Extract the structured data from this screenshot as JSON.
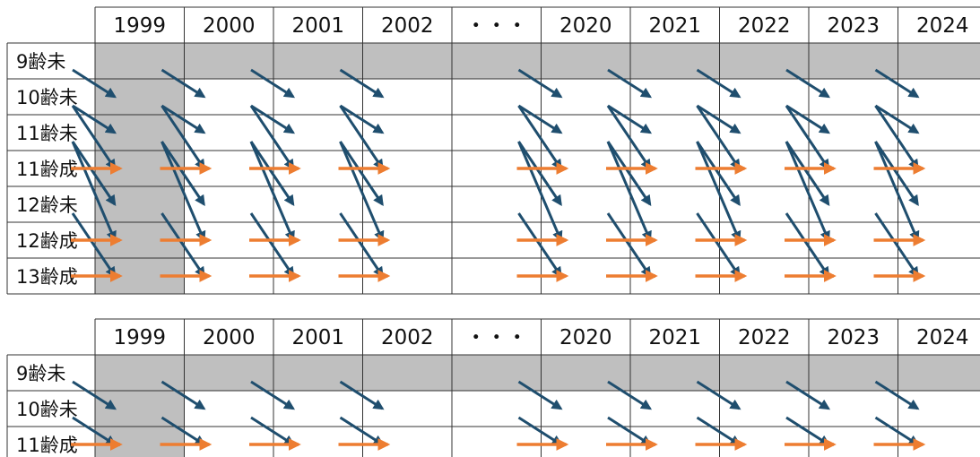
{
  "tables": [
    {
      "id": "upper",
      "columns": [
        "1999",
        "2000",
        "2001",
        "2002",
        "・・・",
        "2020",
        "2021",
        "2022",
        "2023",
        "2024"
      ],
      "rows": [
        "9齢未",
        "10齢未",
        "11齢未",
        "11齢成",
        "12齢未",
        "12齢成",
        "13齢成"
      ],
      "shaded": {
        "column": "1999",
        "row": "9齢未"
      },
      "transitions": [
        {
          "from": "9齢未",
          "to": "10齢未",
          "color": "dark-blue"
        },
        {
          "from": "10齢未",
          "to": "11齢未",
          "color": "dark-blue"
        },
        {
          "from": "10齢未",
          "to": "11齢成",
          "color": "dark-blue"
        },
        {
          "from": "11齢未",
          "to": "12齢未",
          "color": "dark-blue"
        },
        {
          "from": "11齢未",
          "to": "12齢成",
          "color": "dark-blue"
        },
        {
          "from": "12齢未",
          "to": "13齢成",
          "color": "dark-blue"
        },
        {
          "from": "11齢成",
          "to": "11齢成",
          "color": "orange"
        },
        {
          "from": "12齢成",
          "to": "12齢成",
          "color": "orange"
        },
        {
          "from": "13齢成",
          "to": "13齢成",
          "color": "orange"
        }
      ]
    },
    {
      "id": "lower",
      "columns": [
        "1999",
        "2000",
        "2001",
        "2002",
        "・・・",
        "2020",
        "2021",
        "2022",
        "2023",
        "2024"
      ],
      "rows": [
        "9齢未",
        "10齢未",
        "11齢成"
      ],
      "shaded": {
        "column": "1999",
        "row": "9齢未"
      },
      "transitions": [
        {
          "from": "9齢未",
          "to": "10齢未",
          "color": "dark-blue"
        },
        {
          "from": "10齢未",
          "to": "11齢成",
          "color": "dark-blue"
        },
        {
          "from": "11齢成",
          "to": "11齢成",
          "color": "orange"
        }
      ]
    }
  ],
  "colors": {
    "shade": "#bfbfbf",
    "grid": "#333333",
    "dark-blue": "#1f4e6e",
    "orange": "#ed7d31"
  }
}
